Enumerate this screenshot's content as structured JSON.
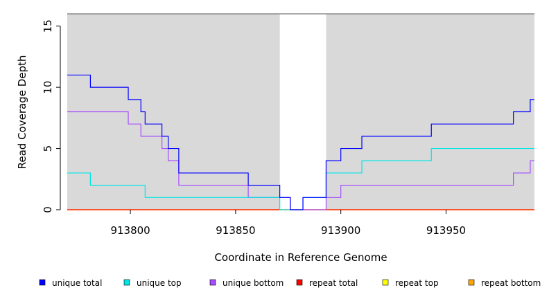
{
  "chart_data": {
    "type": "line",
    "step": true,
    "xlabel": "Coordinate in Reference Genome",
    "ylabel": "Read Coverage Depth",
    "xlim": [
      913770,
      913992
    ],
    "ylim": [
      0,
      16
    ],
    "xticks": [
      913800,
      913850,
      913900,
      913950
    ],
    "xtick_labels": [
      "913800",
      "913850",
      "913900",
      "913950"
    ],
    "yticks": [
      0,
      5,
      10,
      15
    ],
    "ytick_labels": [
      "0",
      "5",
      "10",
      "15"
    ],
    "shaded_regions": [
      [
        913770,
        913871
      ],
      [
        913893,
        913992
      ]
    ],
    "shade_color": "#d9d9d9",
    "legend_position": "bottom",
    "series": [
      {
        "name": "unique total",
        "color": "#0000ff",
        "points": [
          [
            913770,
            11
          ],
          [
            913781,
            10
          ],
          [
            913799,
            9
          ],
          [
            913805,
            8
          ],
          [
            913807,
            7
          ],
          [
            913815,
            6
          ],
          [
            913818,
            5
          ],
          [
            913823,
            3
          ],
          [
            913856,
            2
          ],
          [
            913871,
            1
          ],
          [
            913876,
            0
          ],
          [
            913882,
            1
          ],
          [
            913893,
            4
          ],
          [
            913900,
            5
          ],
          [
            913910,
            6
          ],
          [
            913943,
            7
          ],
          [
            913982,
            8
          ],
          [
            913990,
            9
          ],
          [
            913992,
            9
          ]
        ]
      },
      {
        "name": "unique top",
        "color": "#00e5e5",
        "points": [
          [
            913770,
            3
          ],
          [
            913781,
            2
          ],
          [
            913807,
            1
          ],
          [
            913871,
            0
          ],
          [
            913882,
            1
          ],
          [
            913893,
            3
          ],
          [
            913910,
            4
          ],
          [
            913943,
            5
          ],
          [
            913992,
            5
          ]
        ]
      },
      {
        "name": "unique bottom",
        "color": "#a64dff",
        "points": [
          [
            913770,
            8
          ],
          [
            913799,
            7
          ],
          [
            913805,
            6
          ],
          [
            913815,
            5
          ],
          [
            913818,
            4
          ],
          [
            913823,
            2
          ],
          [
            913856,
            1
          ],
          [
            913876,
            0
          ],
          [
            913893,
            1
          ],
          [
            913900,
            2
          ],
          [
            913982,
            3
          ],
          [
            913990,
            4
          ],
          [
            913992,
            4
          ]
        ]
      },
      {
        "name": "repeat total",
        "color": "#ff0000",
        "points": [
          [
            913770,
            0
          ],
          [
            913992,
            0
          ]
        ]
      },
      {
        "name": "repeat top",
        "color": "#ffff00",
        "points": [
          [
            913770,
            0
          ],
          [
            913992,
            0
          ]
        ]
      },
      {
        "name": "repeat bottom",
        "color": "#ffa500",
        "points": [
          [
            913770,
            0
          ],
          [
            913992,
            0
          ]
        ]
      }
    ]
  }
}
